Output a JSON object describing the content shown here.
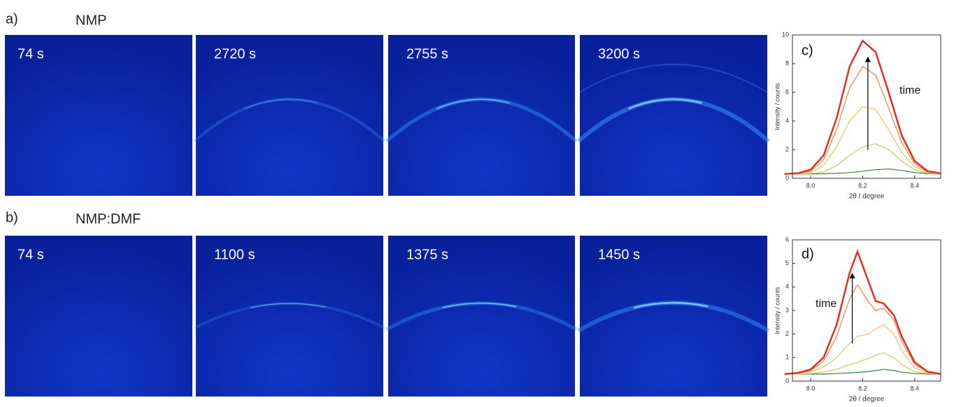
{
  "panels": [
    {
      "label": "a)",
      "title": "NMP",
      "images": [
        {
          "time": "74 s"
        },
        {
          "time": "2720 s"
        },
        {
          "time": "2755 s"
        },
        {
          "time": "3200 s"
        }
      ]
    },
    {
      "label": "b)",
      "title": "NMP:DMF",
      "images": [
        {
          "time": "74 s"
        },
        {
          "time": "1100 s"
        },
        {
          "time": "1375 s"
        },
        {
          "time": "1450 s"
        }
      ]
    }
  ],
  "chart_data": [
    {
      "type": "line",
      "panel_label": "c)",
      "annotation": "time",
      "xlabel": "2θ / degree",
      "ylabel": "Intensity / counts",
      "x": [
        7.9,
        7.95,
        8.0,
        8.05,
        8.1,
        8.15,
        8.2,
        8.25,
        8.3,
        8.35,
        8.4,
        8.45,
        8.5
      ],
      "series": [
        {
          "color": "#3a7d3a",
          "values": [
            0.3,
            0.3,
            0.3,
            0.32,
            0.35,
            0.4,
            0.5,
            0.6,
            0.65,
            0.55,
            0.4,
            0.32,
            0.3
          ]
        },
        {
          "color": "#c8c860",
          "values": [
            0.3,
            0.3,
            0.33,
            0.45,
            0.9,
            1.6,
            2.2,
            2.4,
            2.0,
            1.2,
            0.6,
            0.35,
            0.3
          ]
        },
        {
          "color": "#f0c060",
          "values": [
            0.3,
            0.32,
            0.4,
            0.9,
            2.2,
            4.0,
            5.0,
            4.8,
            3.4,
            1.8,
            0.8,
            0.4,
            0.32
          ]
        },
        {
          "color": "#f08040",
          "values": [
            0.3,
            0.34,
            0.5,
            1.3,
            3.4,
            6.3,
            7.8,
            7.2,
            4.9,
            2.5,
            1.0,
            0.45,
            0.33
          ]
        },
        {
          "color": "#e03020",
          "values": [
            0.3,
            0.35,
            0.6,
            1.6,
            4.2,
            7.8,
            9.6,
            8.8,
            6.0,
            3.0,
            1.2,
            0.5,
            0.35
          ]
        }
      ],
      "xlim": [
        7.93,
        8.5
      ],
      "xticks": [
        {
          "value": 8,
          "label": "8.0"
        },
        8.2,
        8.4
      ],
      "ylim": [
        0,
        10
      ],
      "yticks": [
        0,
        2,
        4,
        6,
        8,
        10
      ]
    },
    {
      "type": "line",
      "panel_label": "d)",
      "annotation": "time",
      "xlabel": "2θ / degree",
      "ylabel": "Intensity / counts",
      "x": [
        7.9,
        7.95,
        8.0,
        8.05,
        8.1,
        8.15,
        8.18,
        8.22,
        8.25,
        8.28,
        8.32,
        8.35,
        8.4,
        8.45,
        8.5
      ],
      "series": [
        {
          "color": "#3a7d3a",
          "values": [
            0.3,
            0.3,
            0.3,
            0.3,
            0.32,
            0.35,
            0.37,
            0.4,
            0.45,
            0.5,
            0.45,
            0.38,
            0.32,
            0.3,
            0.3
          ]
        },
        {
          "color": "#c8c860",
          "values": [
            0.3,
            0.3,
            0.32,
            0.38,
            0.5,
            0.7,
            0.8,
            0.95,
            1.1,
            1.2,
            1.0,
            0.7,
            0.4,
            0.32,
            0.3
          ]
        },
        {
          "color": "#f0c060",
          "values": [
            0.3,
            0.32,
            0.4,
            0.6,
            1.0,
            1.6,
            1.9,
            2.0,
            2.2,
            2.4,
            2.0,
            1.3,
            0.55,
            0.35,
            0.3
          ]
        },
        {
          "color": "#f08040",
          "values": [
            0.3,
            0.33,
            0.45,
            0.85,
            1.9,
            3.5,
            4.1,
            3.4,
            3.0,
            3.1,
            2.6,
            1.7,
            0.7,
            0.38,
            0.3
          ]
        },
        {
          "color": "#e03020",
          "values": [
            0.3,
            0.35,
            0.5,
            1.0,
            2.4,
            4.6,
            5.5,
            4.3,
            3.4,
            3.3,
            2.8,
            1.9,
            0.8,
            0.4,
            0.3
          ]
        }
      ],
      "xlim": [
        7.93,
        8.5
      ],
      "xticks": [
        {
          "value": 8,
          "label": "8.0"
        },
        8.2,
        8.4
      ],
      "ylim": [
        0,
        6
      ],
      "yticks": [
        0,
        1,
        2,
        3,
        4,
        5,
        6
      ]
    }
  ]
}
